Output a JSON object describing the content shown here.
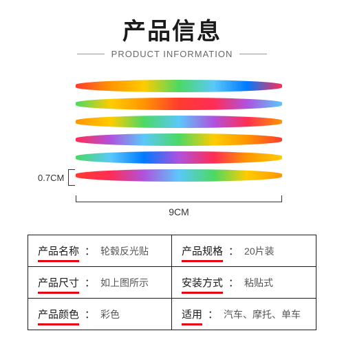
{
  "header": {
    "title_cn": "产品信息",
    "title_en": "PRODUCT INFORMATION"
  },
  "diagram": {
    "height_label": "0.7CM",
    "width_label": "9CM",
    "strip_count": 6,
    "strip_gradients": [
      [
        "#ff3b30",
        "#ff9500",
        "#ffcc00",
        "#4cd964",
        "#5ac8fa",
        "#007aff",
        "#ff2d55"
      ],
      [
        "#4cd964",
        "#ffcc00",
        "#ff9500",
        "#ff3b30",
        "#ff2d55",
        "#af52de",
        "#5ac8fa"
      ],
      [
        "#ff9500",
        "#ffcc00",
        "#4cd964",
        "#5ac8fa",
        "#af52de",
        "#ff2d55",
        "#ff9500"
      ],
      [
        "#ff2d55",
        "#af52de",
        "#5ac8fa",
        "#4cd964",
        "#ffcc00",
        "#ff9500",
        "#ff3b30"
      ],
      [
        "#4cd964",
        "#5ac8fa",
        "#007aff",
        "#af52de",
        "#ff2d55",
        "#ff9500",
        "#ffcc00"
      ],
      [
        "#ff3b30",
        "#ff2d55",
        "#af52de",
        "#5ac8fa",
        "#4cd964",
        "#ffcc00",
        "#ff9500"
      ]
    ],
    "mesh_color": "rgba(255,255,255,0.35)"
  },
  "specs": [
    {
      "key": "产品名称",
      "val": "轮毂反光贴"
    },
    {
      "key": "产品规格",
      "val": "20片装"
    },
    {
      "key": "产品尺寸",
      "val": "如上图所示"
    },
    {
      "key": "安装方式",
      "val": "粘贴式"
    },
    {
      "key": "产品颜色",
      "val": "彩色"
    },
    {
      "key": "适用",
      "val": "汽车、摩托、单车"
    }
  ],
  "colors": {
    "text_primary": "#1a1a1a",
    "text_secondary": "#555555",
    "accent_underline": "#e60012",
    "border": "#1a1a1a",
    "background": "#ffffff"
  }
}
